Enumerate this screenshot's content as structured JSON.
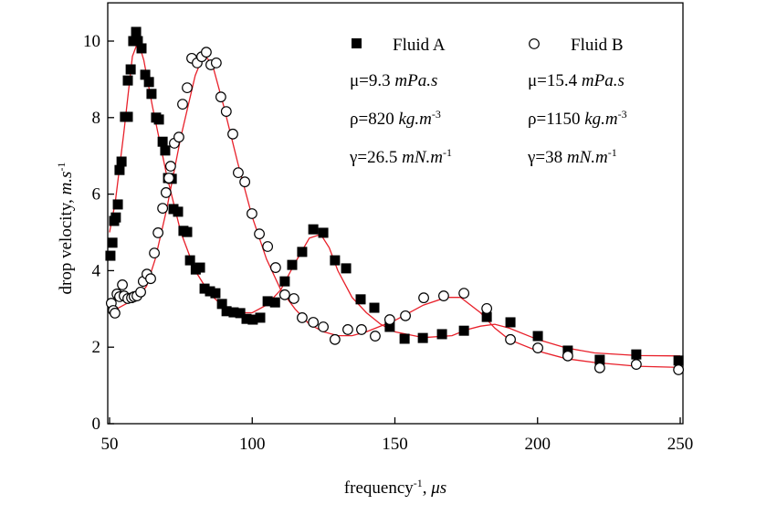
{
  "chart_data": {
    "type": "scatter",
    "xlabel": [
      {
        "text": "frequency"
      },
      {
        "text": "-1",
        "style": "sup"
      },
      {
        "text": ", "
      },
      {
        "text": "μs",
        "style": "italic"
      }
    ],
    "ylabel": [
      {
        "text": "drop velocity,  "
      },
      {
        "text": "m.s",
        "style": "italic"
      },
      {
        "text": "-1",
        "style": "sup"
      }
    ],
    "xlim": [
      50,
      250
    ],
    "xticks": [
      50,
      100,
      150,
      200,
      250
    ],
    "ylim": [
      0,
      11
    ],
    "yticks": [
      0,
      2,
      4,
      6,
      8,
      10
    ],
    "series": [
      {
        "name": "Fluid A",
        "marker": "square",
        "color": "#000000",
        "properties": [
          [
            {
              "text": "μ=9.3 "
            },
            {
              "text": "mPa.s",
              "style": "italic"
            }
          ],
          [
            {
              "text": "ρ=820 "
            },
            {
              "text": "kg.m",
              "style": "italic"
            },
            {
              "text": "-3",
              "style": "sup"
            }
          ],
          [
            {
              "text": "γ=26.5 "
            },
            {
              "text": "mN.m",
              "style": "italic"
            },
            {
              "text": "-1",
              "style": "sup"
            }
          ]
        ],
        "x": [
          50.3,
          51,
          51.6,
          52.2,
          52.9,
          53.5,
          54.2,
          55.4,
          56.4,
          56.4,
          57.4,
          58.3,
          59.3,
          59.9,
          61.2,
          62.5,
          63.8,
          64.7,
          66.3,
          67.3,
          68.6,
          69.5,
          70.5,
          71.8,
          72.4,
          74,
          75.9,
          77.2,
          78.2,
          80.2,
          81.7,
          83.3,
          85.2,
          87.1,
          89.4,
          91,
          93.5,
          95.8,
          98,
          100.2,
          102.8,
          105.4,
          108,
          111.4,
          114,
          117.5,
          121.4,
          124.9,
          129,
          132.9,
          138,
          142.8,
          148.2,
          153.4,
          159.8,
          166.5,
          174.2,
          182.2,
          190.5,
          200.1,
          210.6,
          221.8,
          234.6,
          249.4
        ],
        "values": [
          4.39,
          4.73,
          5.3,
          5.39,
          5.73,
          6.63,
          6.85,
          8.02,
          8.02,
          8.97,
          9.26,
          10.0,
          10.24,
          10.0,
          9.81,
          9.12,
          8.93,
          8.62,
          8.0,
          7.95,
          7.37,
          7.14,
          6.42,
          6.4,
          5.61,
          5.54,
          5.04,
          5.01,
          4.27,
          4.03,
          4.08,
          3.53,
          3.46,
          3.41,
          3.13,
          2.94,
          2.91,
          2.89,
          2.74,
          2.72,
          2.77,
          3.2,
          3.17,
          3.72,
          4.15,
          4.49,
          5.08,
          4.99,
          4.27,
          4.06,
          3.25,
          3.03,
          2.53,
          2.22,
          2.24,
          2.34,
          2.43,
          2.79,
          2.65,
          2.29,
          1.91,
          1.67,
          1.81,
          1.65
        ]
      },
      {
        "name": "Fluid B",
        "marker": "circle",
        "color": "#000000",
        "properties": [
          [
            {
              "text": "μ=15.4 "
            },
            {
              "text": "mPa.s",
              "style": "italic"
            }
          ],
          [
            {
              "text": "ρ=1150 "
            },
            {
              "text": "kg.m",
              "style": "italic"
            },
            {
              "text": "-3",
              "style": "sup"
            }
          ],
          [
            {
              "text": "γ=38 "
            },
            {
              "text": "mN.m",
              "style": "italic"
            },
            {
              "text": "-1",
              "style": "sup"
            }
          ]
        ],
        "x": [
          50.6,
          51.3,
          51.9,
          52.6,
          53.5,
          54.5,
          55.1,
          56.4,
          57.7,
          58.6,
          59.6,
          60.9,
          61.8,
          63.1,
          64.4,
          65.7,
          67,
          68.6,
          69.8,
          70.8,
          71.4,
          72.7,
          74.3,
          75.6,
          77.2,
          78.8,
          80.7,
          82.3,
          83.9,
          85.5,
          87.4,
          89,
          90.9,
          93.2,
          95.1,
          97.4,
          99.9,
          102.5,
          105.4,
          108.2,
          111.4,
          114.6,
          117.5,
          121.4,
          124.9,
          129,
          133.5,
          138.3,
          143.1,
          148.2,
          153.7,
          160.1,
          167.1,
          174.2,
          182.2,
          190.5,
          200.1,
          210.6,
          221.8,
          234.6,
          249.4
        ],
        "values": [
          3.15,
          2.96,
          2.89,
          3.39,
          3.32,
          3.63,
          3.34,
          3.27,
          3.29,
          3.32,
          3.34,
          3.44,
          3.72,
          3.91,
          3.79,
          4.46,
          4.99,
          5.63,
          6.04,
          6.42,
          6.73,
          7.33,
          7.49,
          8.35,
          8.78,
          9.55,
          9.43,
          9.59,
          9.71,
          9.38,
          9.43,
          8.54,
          8.16,
          7.57,
          6.56,
          6.32,
          5.49,
          4.96,
          4.63,
          4.08,
          3.37,
          3.27,
          2.77,
          2.65,
          2.53,
          2.2,
          2.46,
          2.46,
          2.29,
          2.72,
          2.82,
          3.29,
          3.34,
          3.41,
          3.01,
          2.2,
          1.98,
          1.77,
          1.46,
          1.55,
          1.41
        ]
      }
    ],
    "fits": [
      {
        "color": "#e8202a",
        "x": [
          50,
          52,
          55,
          58,
          60,
          62,
          65,
          70,
          75,
          80,
          85,
          90,
          95,
          100,
          105,
          110,
          115,
          120,
          124,
          127,
          130,
          135,
          140,
          145,
          150,
          160,
          170,
          175,
          180,
          185,
          190,
          200,
          210,
          220,
          235,
          250
        ],
        "values": [
          5.0,
          5.8,
          7.6,
          9.6,
          10.0,
          9.5,
          8.3,
          6.5,
          5.0,
          4.0,
          3.4,
          3.05,
          2.9,
          2.9,
          3.1,
          3.5,
          4.2,
          4.85,
          4.95,
          4.6,
          4.0,
          3.3,
          2.9,
          2.6,
          2.4,
          2.25,
          2.3,
          2.45,
          2.55,
          2.6,
          2.5,
          2.2,
          1.98,
          1.85,
          1.78,
          1.77
        ]
      },
      {
        "color": "#e8202a",
        "x": [
          50,
          55,
          60,
          63,
          66,
          70,
          75,
          80,
          83,
          86,
          90,
          95,
          100,
          105,
          110,
          115,
          120,
          125,
          130,
          135,
          140,
          150,
          160,
          168,
          173,
          180,
          185,
          190,
          200,
          210,
          220,
          235,
          250
        ],
        "values": [
          2.9,
          3.1,
          3.3,
          3.6,
          4.3,
          5.6,
          7.5,
          9.1,
          9.65,
          9.4,
          8.3,
          6.8,
          5.4,
          4.3,
          3.5,
          3.0,
          2.6,
          2.4,
          2.3,
          2.3,
          2.4,
          2.7,
          3.1,
          3.3,
          3.3,
          2.9,
          2.5,
          2.2,
          1.9,
          1.7,
          1.6,
          1.5,
          1.47
        ]
      }
    ]
  }
}
